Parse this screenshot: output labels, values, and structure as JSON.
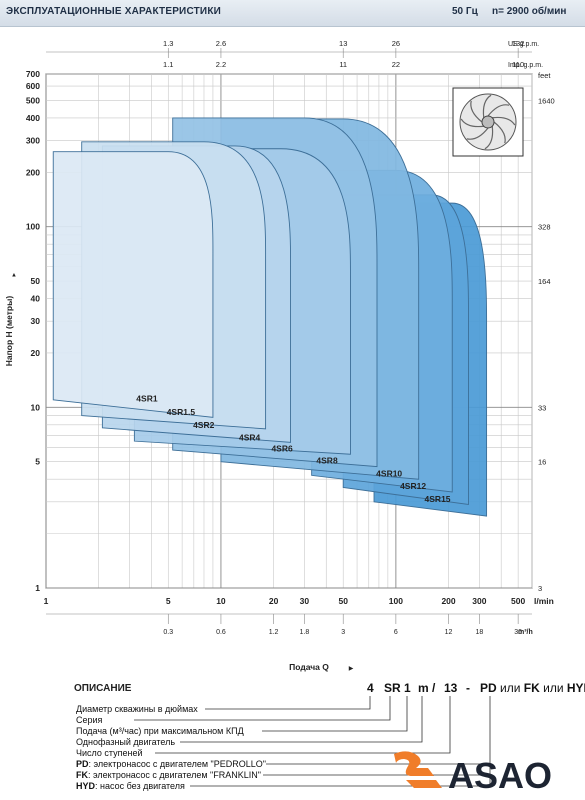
{
  "header": {
    "title": "ЭКСПЛУАТАЦИОННЫЕ ХАРАКТЕРИСТИКИ",
    "frequency": "50 Гц",
    "speed": "n= 2900 об/мин"
  },
  "chart_data": {
    "type": "area",
    "xlabel": "Подача Q",
    "ylabel": "Напор H (метры)",
    "x_scale": "log",
    "y_scale": "log",
    "xlim": [
      1,
      600
    ],
    "ylim": [
      1,
      700
    ],
    "x_unit": "l/min",
    "x_ticks": [
      "1",
      "5",
      "10",
      "20",
      "30",
      "50",
      "100",
      "200",
      "300",
      "500"
    ],
    "x_tick_values": [
      1,
      5,
      10,
      20,
      30,
      50,
      100,
      200,
      300,
      500
    ],
    "y_ticks": [
      "1",
      "5",
      "10",
      "20",
      "30",
      "40",
      "50",
      "100",
      "200",
      "300",
      "400",
      "500",
      "600",
      "700"
    ],
    "y_tick_values": [
      1,
      5,
      10,
      20,
      30,
      40,
      50,
      100,
      200,
      300,
      400,
      500,
      600,
      700
    ],
    "secondary_axes": {
      "m3h": {
        "unit": "m³/h",
        "ticks": [
          "0.3",
          "0.6",
          "1.2",
          "1.8",
          "3",
          "6",
          "12",
          "18",
          "30"
        ],
        "positions_lmin": [
          5,
          10,
          20,
          30,
          50,
          100,
          200,
          300,
          500
        ]
      },
      "us_gpm": {
        "unit": "US g.p.m.",
        "ticks": [
          "1.3",
          "2.6",
          "13",
          "26",
          "132"
        ],
        "positions_lmin": [
          5,
          10,
          50,
          100,
          500
        ]
      },
      "imp_gpm": {
        "unit": "Imp. g.p.m.",
        "ticks": [
          "1.1",
          "2.2",
          "11",
          "22",
          "110"
        ],
        "positions_lmin": [
          5,
          10,
          50,
          100,
          500
        ]
      },
      "feet": {
        "unit": "feet",
        "ticks": [
          "1640",
          "328",
          "164",
          "33",
          "16",
          "3"
        ],
        "positions_m": [
          500,
          100,
          50,
          10,
          5,
          1
        ]
      }
    },
    "series": [
      {
        "name": "4SR1",
        "q_min": 1.1,
        "q_max": 9,
        "h_low_left": 11,
        "h_low_right": 8.8,
        "h_top": 260,
        "shoulder_q": 5
      },
      {
        "name": "4SR1.5",
        "q_min": 1.6,
        "q_max": 18,
        "h_low_left": 9,
        "h_low_right": 7.6,
        "h_top": 295,
        "shoulder_q": 8
      },
      {
        "name": "4SR2",
        "q_min": 2.1,
        "q_max": 25,
        "h_low_left": 7.7,
        "h_low_right": 6.4,
        "h_top": 280,
        "shoulder_q": 12
      },
      {
        "name": "4SR4",
        "q_min": 3.2,
        "q_max": 55,
        "h_low_left": 6.5,
        "h_low_right": 5.5,
        "h_top": 270,
        "shoulder_q": 22
      },
      {
        "name": "4SR6",
        "q_min": 5.3,
        "q_max": 78,
        "h_low_left": 5.8,
        "h_low_right": 4.7,
        "h_top": 400,
        "shoulder_q": 30
      },
      {
        "name": "4SR8",
        "q_min": 10,
        "q_max": 135,
        "h_low_left": 5,
        "h_low_right": 4,
        "h_top": 395,
        "shoulder_q": 50
      },
      {
        "name": "4SR10",
        "q_min": 33,
        "q_max": 210,
        "h_low_left": 4.2,
        "h_low_right": 3.4,
        "h_top": 205,
        "shoulder_q": 100
      },
      {
        "name": "4SR12",
        "q_min": 50,
        "q_max": 260,
        "h_low_left": 3.6,
        "h_low_right": 2.9,
        "h_top": 150,
        "shoulder_q": 160
      },
      {
        "name": "4SR15",
        "q_min": 75,
        "q_max": 330,
        "h_low_left": 3.0,
        "h_low_right": 2.5,
        "h_top": 135,
        "shoulder_q": 210
      }
    ]
  },
  "description": {
    "title": "ОПИСАНИЕ",
    "code_parts": [
      "4",
      "SR",
      "1",
      "m",
      "/",
      "13",
      "-"
    ],
    "code_suffix_pd": "PD",
    "code_suffix_or1": "или",
    "code_suffix_fk": "FK",
    "code_suffix_or2": "или",
    "code_suffix_hyd": "HYD",
    "lines": [
      "Диаметр скважины в дюймах",
      "Серия",
      "Подача (м³/час) при максимальном КПД",
      "Однофазный двигатель",
      "Число ступеней"
    ],
    "lines_bold": [
      {
        "key": "PD",
        "text": ": электронасос с двигателем \"PEDROLLO\""
      },
      {
        "key": "FK",
        "text": ": электронасос с двигателем \"FRANKLIN\""
      },
      {
        "key": "HYD",
        "text": ": насос без двигателя"
      }
    ]
  },
  "logo": {
    "text": "ASAO",
    "color_orange": "#f07d2a",
    "color_dark": "#1d2432"
  },
  "colors": {
    "curve_light": "#dbe8f4",
    "curve_dark": "#4a9ad6",
    "grid": "#bfbfbf",
    "header_text": "#1f2f45"
  }
}
